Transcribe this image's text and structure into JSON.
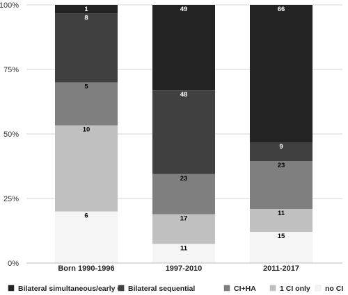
{
  "chart_data": {
    "type": "bar",
    "stacked": "percent",
    "categories": [
      "Born 1990-1996",
      "1997-2010",
      "2011-2017"
    ],
    "series": [
      {
        "name": "no CI",
        "color": "#f5f5f5",
        "values": [
          6,
          11,
          15
        ]
      },
      {
        "name": "1 CI only",
        "color": "#c0c0c0",
        "values": [
          10,
          17,
          11
        ]
      },
      {
        "name": "CI+HA",
        "color": "#7f7f7f",
        "values": [
          5,
          23,
          23
        ]
      },
      {
        "name": "Bilateral sequential",
        "color": "#404040",
        "values": [
          8,
          48,
          9
        ]
      },
      {
        "name": "Bilateral simultaneous/early CI",
        "color": "#232323",
        "values": [
          1,
          49,
          66
        ]
      }
    ],
    "legend_order": [
      "Bilateral simultaneous/early CI",
      "Bilateral sequential",
      "CI+HA",
      "1 CI only",
      "no CI"
    ],
    "y_ticks": [
      "0%",
      "25%",
      "50%",
      "75%",
      "100%"
    ],
    "ylim": [
      0,
      100
    ],
    "grid": true,
    "legend_position": "bottom",
    "title": "",
    "xlabel": "",
    "ylabel": ""
  }
}
